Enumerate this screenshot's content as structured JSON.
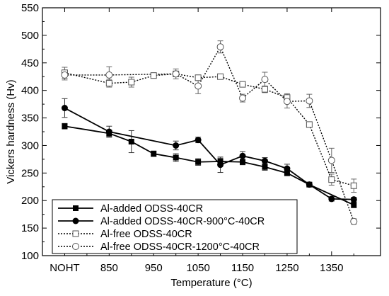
{
  "chart_data": {
    "type": "line",
    "xlabel": "Temperature (°C)",
    "ylabel": "Vickers hardness (Hv)",
    "xlim": [
      700,
      1460
    ],
    "ylim": [
      100,
      550
    ],
    "x_ticks": [
      {
        "value": 750,
        "label": "NOHT"
      },
      {
        "value": 850,
        "label": "850"
      },
      {
        "value": 950,
        "label": "950"
      },
      {
        "value": 1050,
        "label": "1050"
      },
      {
        "value": 1150,
        "label": "1150"
      },
      {
        "value": 1250,
        "label": "1250"
      },
      {
        "value": 1350,
        "label": "1350"
      }
    ],
    "y_ticks": [
      100,
      150,
      200,
      250,
      300,
      350,
      400,
      450,
      500,
      550
    ],
    "grid": false,
    "legend_position": "bottom-left",
    "series": [
      {
        "name": "Al-added ODSS-40CR",
        "marker": "filled-square",
        "line": "solid",
        "points": [
          {
            "x": 750,
            "y": 335,
            "err": 5
          },
          {
            "x": 850,
            "y": 322,
            "err": 6
          },
          {
            "x": 900,
            "y": 307,
            "err": 20
          },
          {
            "x": 950,
            "y": 285,
            "err": 5
          },
          {
            "x": 1000,
            "y": 278,
            "err": 7
          },
          {
            "x": 1050,
            "y": 270,
            "err": 6
          },
          {
            "x": 1100,
            "y": 271,
            "err": 6
          },
          {
            "x": 1150,
            "y": 270,
            "err": 5
          },
          {
            "x": 1200,
            "y": 261,
            "err": 6
          },
          {
            "x": 1250,
            "y": 250,
            "err": 5
          },
          {
            "x": 1300,
            "y": 229,
            "err": 4
          },
          {
            "x": 1400,
            "y": 192,
            "err": 5
          }
        ]
      },
      {
        "name": "Al-added ODSS-40CR-900°C-40CR",
        "marker": "filled-circle",
        "line": "solid",
        "points": [
          {
            "x": 750,
            "y": 368,
            "err": 17
          },
          {
            "x": 850,
            "y": 325,
            "err": 10
          },
          {
            "x": 1000,
            "y": 300,
            "err": 8
          },
          {
            "x": 1050,
            "y": 310,
            "err": 5
          },
          {
            "x": 1100,
            "y": 265,
            "err": 14
          },
          {
            "x": 1150,
            "y": 281,
            "err": 8
          },
          {
            "x": 1200,
            "y": 272,
            "err": 6
          },
          {
            "x": 1250,
            "y": 258,
            "err": 8
          },
          {
            "x": 1300,
            "y": 229,
            "err": 4
          },
          {
            "x": 1350,
            "y": 203,
            "err": 4
          },
          {
            "x": 1400,
            "y": 202,
            "err": 4
          }
        ]
      },
      {
        "name": "Al-free ODSS-40CR",
        "marker": "open-square",
        "line": "dotted",
        "points": [
          {
            "x": 750,
            "y": 432,
            "err": 10
          },
          {
            "x": 850,
            "y": 413,
            "err": 7
          },
          {
            "x": 900,
            "y": 415,
            "err": 9
          },
          {
            "x": 950,
            "y": 427,
            "err": 5
          },
          {
            "x": 1000,
            "y": 430,
            "err": 5
          },
          {
            "x": 1050,
            "y": 423,
            "err": 5
          },
          {
            "x": 1100,
            "y": 425,
            "err": 4
          },
          {
            "x": 1150,
            "y": 411,
            "err": 5
          },
          {
            "x": 1200,
            "y": 402,
            "err": 6
          },
          {
            "x": 1250,
            "y": 387,
            "err": 7
          },
          {
            "x": 1300,
            "y": 338,
            "err": 5
          },
          {
            "x": 1350,
            "y": 238,
            "err": 10
          },
          {
            "x": 1400,
            "y": 227,
            "err": 12
          }
        ]
      },
      {
        "name": "Al-free ODSS-40CR-1200°C-40CR",
        "marker": "open-circle",
        "line": "dotted",
        "points": [
          {
            "x": 750,
            "y": 428,
            "err": 9
          },
          {
            "x": 850,
            "y": 428,
            "err": 15
          },
          {
            "x": 1000,
            "y": 430,
            "err": 9
          },
          {
            "x": 1050,
            "y": 408,
            "err": 14
          },
          {
            "x": 1100,
            "y": 479,
            "err": 11
          },
          {
            "x": 1150,
            "y": 386,
            "err": 7
          },
          {
            "x": 1200,
            "y": 420,
            "err": 13
          },
          {
            "x": 1250,
            "y": 380,
            "err": 12
          },
          {
            "x": 1300,
            "y": 381,
            "err": 12
          },
          {
            "x": 1350,
            "y": 273,
            "err": 22
          },
          {
            "x": 1400,
            "y": 162,
            "err": 5
          }
        ]
      }
    ]
  }
}
